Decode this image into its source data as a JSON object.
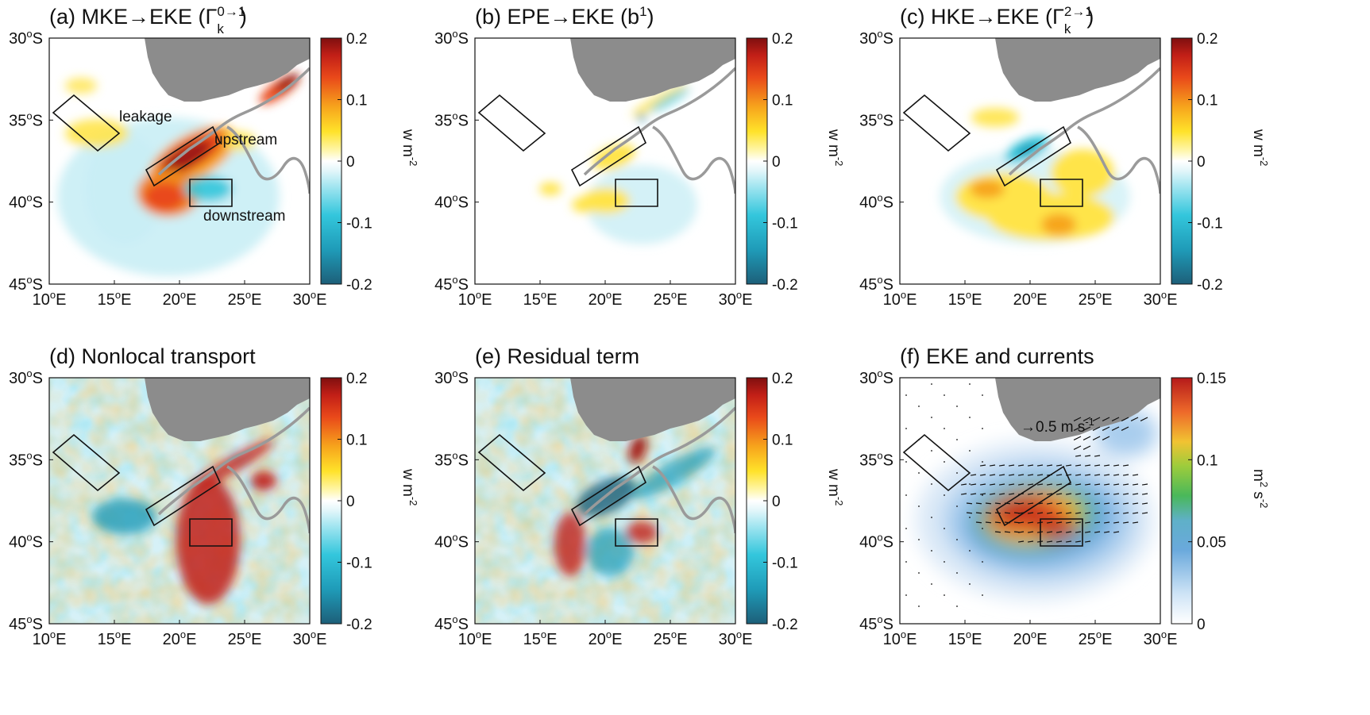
{
  "panels": [
    {
      "id": "a",
      "title": "(a) MKE→EKE (Γ",
      "title_sup": "0→1",
      "title_sub": "k",
      "title_end": ")",
      "colorbar": {
        "ticks": [
          "0.2",
          "0.1",
          "0",
          "-0.1",
          "-0.2"
        ],
        "unit": "w m",
        "unit_exp": "-2",
        "type": "diverging"
      },
      "annotations": [
        "leakage",
        "upstream",
        "downstream"
      ]
    },
    {
      "id": "b",
      "title": "(b) EPE→EKE (b",
      "title_sup": "1",
      "title_sub": "",
      "title_end": ")",
      "colorbar": {
        "ticks": [
          "0.2",
          "0.1",
          "0",
          "-0.1",
          "-0.2"
        ],
        "unit": "w m",
        "unit_exp": "-2",
        "type": "diverging"
      },
      "annotations": []
    },
    {
      "id": "c",
      "title": "(c) HKE→EKE (Γ",
      "title_sup": "2→1",
      "title_sub": "k",
      "title_end": ")",
      "colorbar": {
        "ticks": [
          "0.2",
          "0.1",
          "0",
          "-0.1",
          "-0.2"
        ],
        "unit": "w m",
        "unit_exp": "-2",
        "type": "diverging"
      },
      "annotations": []
    },
    {
      "id": "d",
      "title": "(d) Nonlocal transport",
      "title_sup": "",
      "title_sub": "",
      "title_end": "",
      "colorbar": {
        "ticks": [
          "0.2",
          "0.1",
          "0",
          "-0.1",
          "-0.2"
        ],
        "unit": "w m",
        "unit_exp": "-2",
        "type": "diverging"
      },
      "annotations": []
    },
    {
      "id": "e",
      "title": "(e) Residual term",
      "title_sup": "",
      "title_sub": "",
      "title_end": "",
      "colorbar": {
        "ticks": [
          "0.2",
          "0.1",
          "0",
          "-0.1",
          "-0.2"
        ],
        "unit": "w m",
        "unit_exp": "-2",
        "type": "diverging"
      },
      "annotations": []
    },
    {
      "id": "f",
      "title": "(f) EKE and currents",
      "title_sup": "",
      "title_sub": "",
      "title_end": "",
      "colorbar": {
        "ticks": [
          "0.15",
          "0.1",
          "0.05",
          "0"
        ],
        "unit": "m",
        "unit_exp": "2",
        "unit2": " s",
        "unit2_exp": "-2",
        "type": "sequential"
      },
      "annotations": [
        "→0.5 m s",
        "-1"
      ]
    }
  ],
  "axes": {
    "lat_ticks": [
      "30",
      "35",
      "40",
      "45"
    ],
    "lat_suffix": "S",
    "lon_ticks": [
      "10",
      "15",
      "20",
      "25",
      "30"
    ],
    "lon_suffix": "E",
    "degree": "o"
  },
  "colors": {
    "land": "#8c8c8c",
    "front_line": "#9a9a9a",
    "box": "#111111",
    "div_neg_strong": "#1b6f8a",
    "div_neg": "#2ec4dc",
    "div_neg_light": "#c9eef5",
    "div_zero": "#ffffff",
    "div_pos_light": "#ffe44a",
    "div_pos": "#f08a1c",
    "div_pos_strong": "#8b0e0e"
  }
}
